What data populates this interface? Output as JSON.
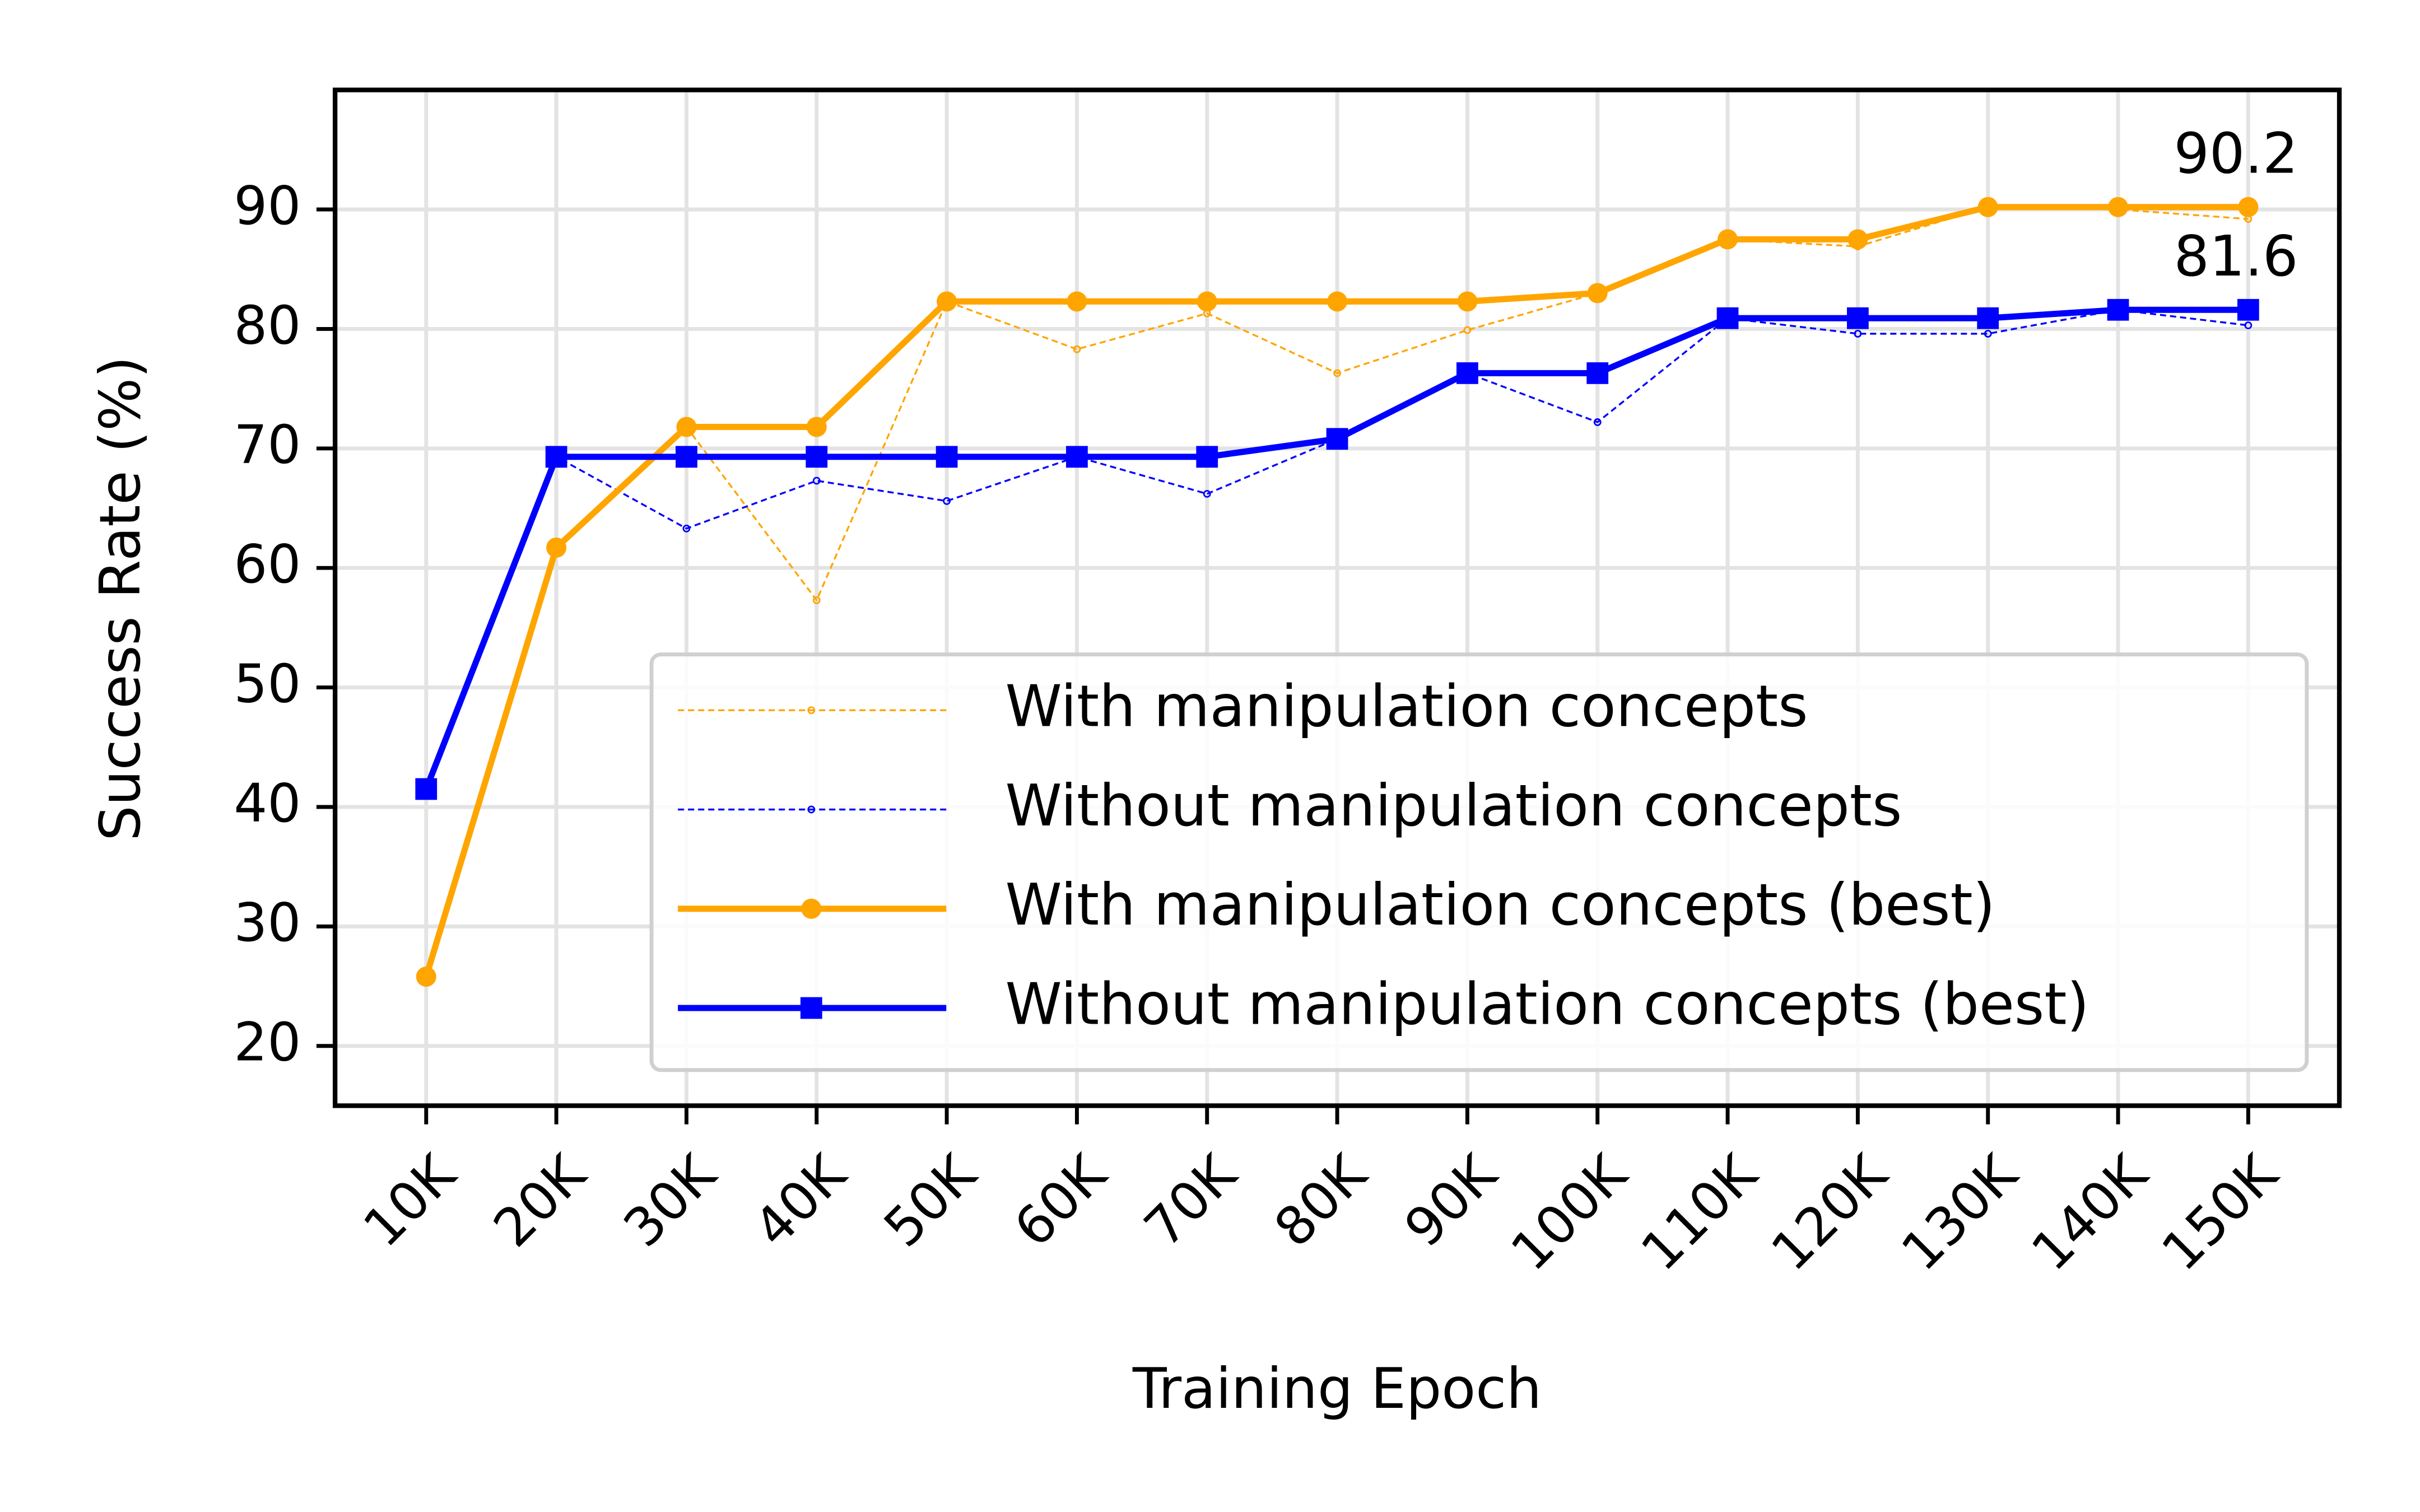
{
  "chart_data": {
    "type": "line",
    "xlabel": "Training Epoch",
    "ylabel": "Success Rate (%)",
    "categories": [
      "10K",
      "20K",
      "30K",
      "40K",
      "50K",
      "60K",
      "70K",
      "80K",
      "90K",
      "100K",
      "110K",
      "120K",
      "130K",
      "140K",
      "150K"
    ],
    "ylim": [
      15,
      100
    ],
    "yticks": [
      20,
      30,
      40,
      50,
      60,
      70,
      80,
      90
    ],
    "grid": true,
    "legend": "lower right",
    "series": [
      {
        "name": "With manipulation concepts",
        "color": "#ffa500",
        "style": "dashed",
        "values": [
          25.8,
          61.7,
          71.8,
          57.3,
          82.3,
          78.3,
          81.3,
          76.3,
          79.9,
          83.0,
          87.5,
          86.9,
          90.2,
          90.0,
          89.2
        ]
      },
      {
        "name": "Without manipulation concepts",
        "color": "#0000ff",
        "style": "dashed",
        "values": [
          41.5,
          69.3,
          63.3,
          67.3,
          65.6,
          69.3,
          66.2,
          70.8,
          76.3,
          72.2,
          80.9,
          79.6,
          79.6,
          81.6,
          80.3
        ]
      },
      {
        "name": "With manipulation concepts (best)",
        "color": "#ffa500",
        "style": "solid",
        "marker": "circle",
        "values": [
          25.8,
          61.7,
          71.8,
          71.8,
          82.3,
          82.3,
          82.3,
          82.3,
          82.3,
          83.0,
          87.5,
          87.5,
          90.2,
          90.2,
          90.2
        ],
        "value_labels": [
          null,
          null,
          null,
          null,
          null,
          null,
          null,
          null,
          null,
          null,
          null,
          null,
          null,
          null,
          "90.2"
        ]
      },
      {
        "name": "Without manipulation concepts (best)",
        "color": "#0000ff",
        "style": "solid",
        "marker": "square",
        "values": [
          41.5,
          69.3,
          69.3,
          69.3,
          69.3,
          69.3,
          69.3,
          70.8,
          76.3,
          76.3,
          80.9,
          80.9,
          80.9,
          81.6,
          81.6
        ],
        "value_labels": [
          null,
          null,
          null,
          null,
          null,
          null,
          null,
          null,
          null,
          null,
          null,
          null,
          null,
          null,
          "81.6"
        ]
      }
    ]
  }
}
